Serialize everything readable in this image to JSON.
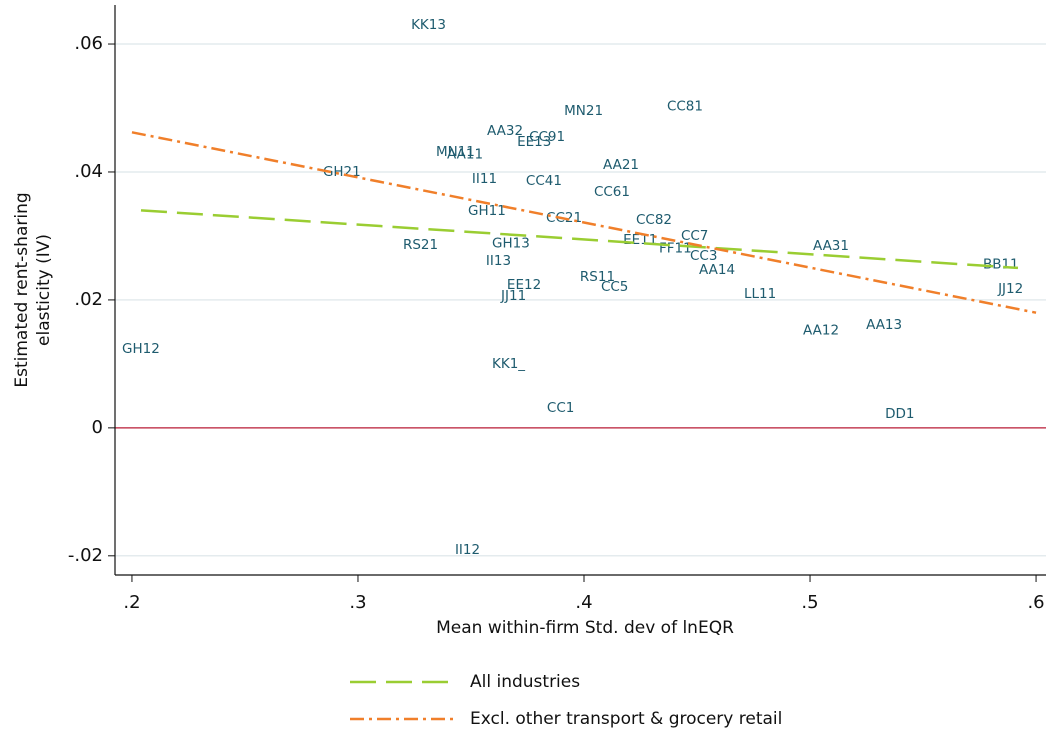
{
  "chart_data": {
    "type": "scatter",
    "xlabel": "Mean within-firm Std. dev of lnEQR",
    "ylabel": [
      "Estimated rent-sharing",
      "elasticity (IV)"
    ],
    "xlim": [
      0.1925,
      0.6044
    ],
    "ylim": [
      -0.023,
      0.0661
    ],
    "xticks": [
      {
        "value": 0.2,
        "label": ".2"
      },
      {
        "value": 0.3,
        "label": ".3"
      },
      {
        "value": 0.4,
        "label": ".4"
      },
      {
        "value": 0.5,
        "label": ".5"
      },
      {
        "value": 0.6,
        "label": ".6"
      }
    ],
    "yticks": [
      {
        "value": -0.02,
        "label": "-.02"
      },
      0,
      {
        "value": 0.02,
        "label": ".02"
      },
      {
        "value": 0.04,
        "label": ".04"
      },
      {
        "value": 0.06,
        "label": ".06"
      }
    ],
    "grid": true,
    "refline": {
      "value": 0,
      "color": "#c0203a"
    },
    "points": {
      "color": "#1e5b6e",
      "labels": [
        "KK13",
        "MN21",
        "CC81",
        "AA32",
        "CC91",
        "EE13",
        "MN11",
        "AA11",
        "AA21",
        "GH21",
        "II11",
        "CC41",
        "CC61",
        "GH11",
        "CC21",
        "CC82",
        "CC7",
        "EE11",
        "RS21",
        "GH13",
        "AA31",
        "FF11",
        "CC3",
        "II13",
        "BB11",
        "AA14",
        "RS11",
        "EE12",
        "CC5",
        "JJ12",
        "JJ11",
        "LL11",
        "AA13",
        "AA12",
        "GH12",
        "KK1_",
        "CC1",
        "DD1",
        "II12"
      ],
      "x": [
        0.3235,
        0.3912,
        0.4367,
        0.3571,
        0.3757,
        0.3704,
        0.3345,
        0.3394,
        0.4084,
        0.2845,
        0.3504,
        0.3743,
        0.4044,
        0.3487,
        0.3832,
        0.423,
        0.4429,
        0.4173,
        0.3199,
        0.3593,
        0.5013,
        0.4332,
        0.4469,
        0.3566,
        0.5765,
        0.4509,
        0.3982,
        0.3659,
        0.4075,
        0.5832,
        0.3633,
        0.4708,
        0.5248,
        0.4969,
        0.1956,
        0.3593,
        0.3836,
        0.5332,
        0.3429
      ],
      "y": [
        0.063,
        0.0495,
        0.0502,
        0.0464,
        0.0455,
        0.0447,
        0.0431,
        0.0427,
        0.0411,
        0.04,
        0.0389,
        0.0386,
        0.0369,
        0.0339,
        0.0328,
        0.0325,
        0.03,
        0.0294,
        0.0286,
        0.0288,
        0.0284,
        0.028,
        0.0269,
        0.0261,
        0.0255,
        0.0247,
        0.0236,
        0.0223,
        0.022,
        0.0217,
        0.0206,
        0.0209,
        0.0161,
        0.0152,
        0.0123,
        0.01,
        0.0031,
        0.0022,
        -0.0191
      ]
    },
    "series": [
      {
        "name": "All industries",
        "color": "#9acd32",
        "dash": "26,10",
        "x": [
          0.204,
          0.592
        ],
        "values": [
          0.034,
          0.025
        ]
      },
      {
        "name": "Excl. other transport & grocery retail",
        "color": "#f07f2a",
        "dash": "14,5,3,5",
        "x": [
          0.2,
          0.6
        ],
        "values": [
          0.0462,
          0.018
        ]
      }
    ]
  }
}
